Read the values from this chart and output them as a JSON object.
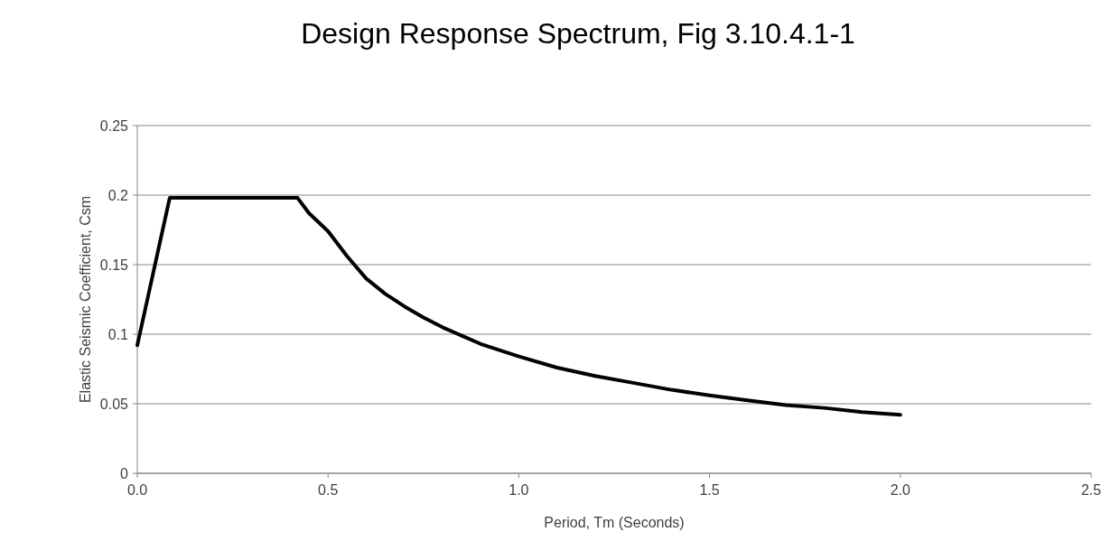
{
  "chart_data": {
    "type": "line",
    "title": "Design Response Spectrum, Fig 3.10.4.1-1",
    "xlabel": "Period, Tm (Seconds)",
    "ylabel": "Elastic Seismic Coefficient, Csm",
    "x": [
      0,
      0.085,
      0.42,
      0.45,
      0.5,
      0.55,
      0.6,
      0.65,
      0.7,
      0.75,
      0.8,
      0.9,
      1.0,
      1.1,
      1.2,
      1.3,
      1.4,
      1.5,
      1.6,
      1.7,
      1.8,
      1.9,
      2.0
    ],
    "series": [
      {
        "color": "#000000",
        "values": [
          0.092,
          0.198,
          0.198,
          0.187,
          0.174,
          0.156,
          0.14,
          0.129,
          0.12,
          0.112,
          0.105,
          0.093,
          0.084,
          0.076,
          0.07,
          0.065,
          0.06,
          0.056,
          0.0525,
          0.049,
          0.047,
          0.044,
          0.042
        ]
      }
    ],
    "xlim": [
      0,
      2.5
    ],
    "xticks": [
      {
        "value": 0,
        "label": "0.0"
      },
      {
        "value": 0.5,
        "label": "0.5"
      },
      {
        "value": 1,
        "label": "1.0"
      },
      {
        "value": 1.5,
        "label": "1.5"
      },
      {
        "value": 2,
        "label": "2.0"
      },
      {
        "value": 2.5,
        "label": "2.5"
      }
    ],
    "ylim": [
      0,
      0.25
    ],
    "yticks": [
      0,
      0.05,
      0.1,
      0.15,
      0.2,
      0.25
    ],
    "grid": "y",
    "line_style": "solid"
  }
}
